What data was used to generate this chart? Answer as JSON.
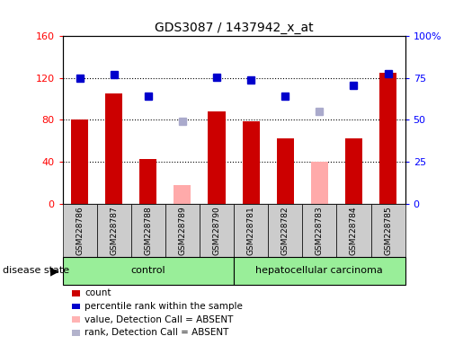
{
  "title": "GDS3087 / 1437942_x_at",
  "samples": [
    "GSM228786",
    "GSM228787",
    "GSM228788",
    "GSM228789",
    "GSM228790",
    "GSM228781",
    "GSM228782",
    "GSM228783",
    "GSM228784",
    "GSM228785"
  ],
  "bar_values": [
    80,
    105,
    43,
    null,
    88,
    79,
    62,
    null,
    62,
    125
  ],
  "bar_absent_values": [
    null,
    null,
    null,
    18,
    null,
    null,
    null,
    40,
    null,
    null
  ],
  "rank_values": [
    120,
    123,
    103,
    null,
    121,
    118,
    103,
    null,
    113,
    124
  ],
  "rank_absent_values": [
    null,
    null,
    null,
    79,
    null,
    null,
    null,
    88,
    null,
    null
  ],
  "bar_color": "#cc0000",
  "bar_absent_color": "#ffaaaa",
  "rank_color": "#0000cc",
  "rank_absent_color": "#aaaacc",
  "ylim_left": [
    0,
    160
  ],
  "ylim_right": [
    0,
    100
  ],
  "yticks_left": [
    0,
    40,
    80,
    120,
    160
  ],
  "yticks_right": [
    0,
    25,
    50,
    75,
    100
  ],
  "ytick_labels_right": [
    "0",
    "25",
    "50",
    "75",
    "100%"
  ],
  "control_label": "control",
  "disease_label": "hepatocellular carcinoma",
  "disease_state_label": "disease state",
  "n_control": 5,
  "legend_items": [
    {
      "label": "count",
      "color": "#cc0000"
    },
    {
      "label": "percentile rank within the sample",
      "color": "#0000cc"
    },
    {
      "label": "value, Detection Call = ABSENT",
      "color": "#ffb3b3"
    },
    {
      "label": "rank, Detection Call = ABSENT",
      "color": "#b3b3cc"
    }
  ],
  "green_bg": "#99ee99",
  "gray_sample_bg": "#cccccc",
  "bar_width": 0.5
}
